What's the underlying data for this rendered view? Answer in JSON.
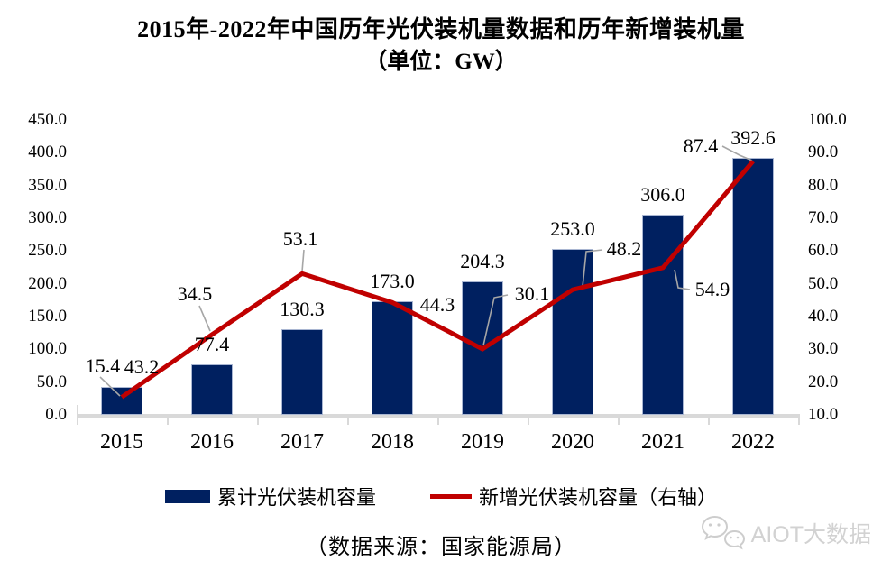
{
  "title": {
    "line1": "2015年-2022年中国历年光伏装机量数据和历年新增装机量",
    "line2": "（单位：GW）"
  },
  "chart_data": {
    "type": "bar+line",
    "categories": [
      "2015",
      "2016",
      "2017",
      "2018",
      "2019",
      "2020",
      "2021",
      "2022"
    ],
    "series": [
      {
        "name": "累计光伏装机容量",
        "type": "bar",
        "axis": "left",
        "color": "#002060",
        "values": [
          43.2,
          77.4,
          130.3,
          173.0,
          204.3,
          253.0,
          306.0,
          392.6
        ]
      },
      {
        "name": "新增光伏装机容量（右轴）",
        "type": "line",
        "axis": "right",
        "color": "#c00000",
        "values": [
          15.4,
          34.5,
          53.1,
          44.3,
          30.1,
          48.2,
          54.9,
          87.4
        ]
      }
    ],
    "data_labels": {
      "bar": [
        "43.2",
        "77.4",
        "130.3",
        "173.0",
        "204.3",
        "253.0",
        "306.0",
        "392.6"
      ],
      "line": [
        "15.4",
        "34.5",
        "53.1",
        "44.3",
        "30.1",
        "48.2",
        "54.9",
        "87.4"
      ]
    },
    "left_axis": {
      "min": 0,
      "max": 450,
      "ticks": [
        "0.0",
        "50.0",
        "100.0",
        "150.0",
        "200.0",
        "250.0",
        "300.0",
        "350.0",
        "400.0",
        "450.0"
      ]
    },
    "right_axis": {
      "min": 10,
      "max": 100,
      "ticks": [
        "10.0",
        "20.0",
        "30.0",
        "40.0",
        "50.0",
        "60.0",
        "70.0",
        "80.0",
        "90.0",
        "100.0"
      ]
    },
    "title": "2015年-2022年中国历年光伏装机量数据和历年新增装机量（单位：GW）",
    "grid": false,
    "legend_position": "bottom"
  },
  "legend": {
    "bar_label": "累计光伏装机容量",
    "line_label": "新增光伏装机容量（右轴）"
  },
  "source_note": "（数据来源：国家能源局）",
  "watermark": {
    "text": "AIOT大数据",
    "icon": "wechat-logo-icon"
  },
  "colors": {
    "bar": "#002060",
    "line": "#c00000",
    "leader": "#a6a6a6",
    "axis": "#d9d9d9",
    "watermark": "#d2d2d2"
  }
}
